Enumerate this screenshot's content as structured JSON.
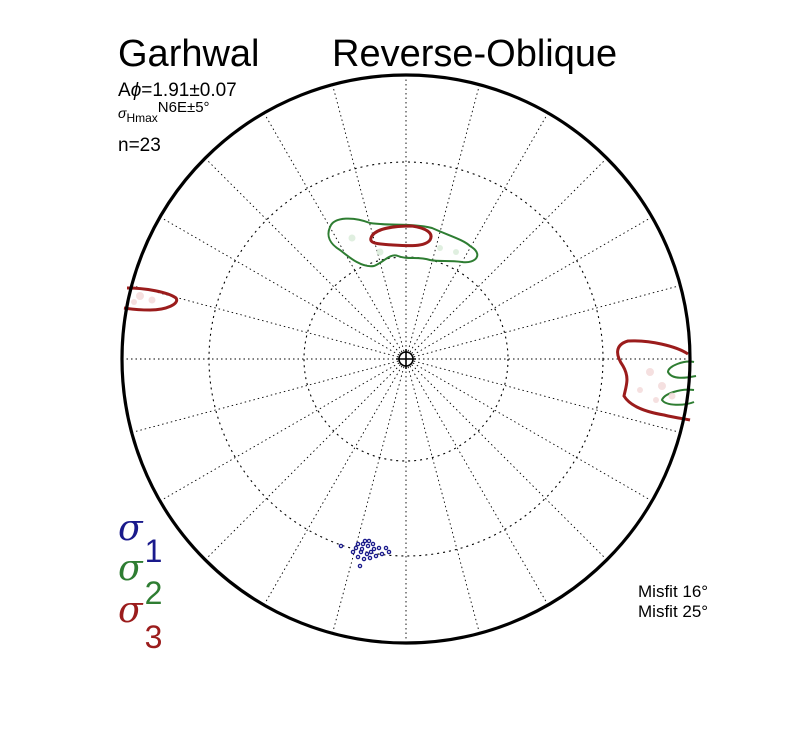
{
  "header": {
    "region": "Garhwal",
    "regime": "Reverse-Oblique"
  },
  "params": {
    "aphi_prefix": "A",
    "aphi_symbol": "ϕ",
    "aphi_value": "=1.91±0.07",
    "shmax_sigma": "σ",
    "shmax_sub": "Hmax",
    "shmax_value": "N6E±5°",
    "n": "n=23"
  },
  "legend": {
    "sigma": "σ",
    "s1_index": "1",
    "s2_index": "2",
    "s3_index": "3",
    "s1_color": "#1a1a8c",
    "s2_color": "#2e7d32",
    "s3_color": "#9b1c1c"
  },
  "misfit": {
    "line1": "Misfit 16°",
    "line2": "Misfit 25°"
  },
  "stereonet": {
    "projection": "lower-hemisphere equal-area",
    "dip_circles_deg": [
      30,
      60
    ],
    "azimuth_spacing_deg": 15,
    "center_marker": "plus-in-circle"
  }
}
